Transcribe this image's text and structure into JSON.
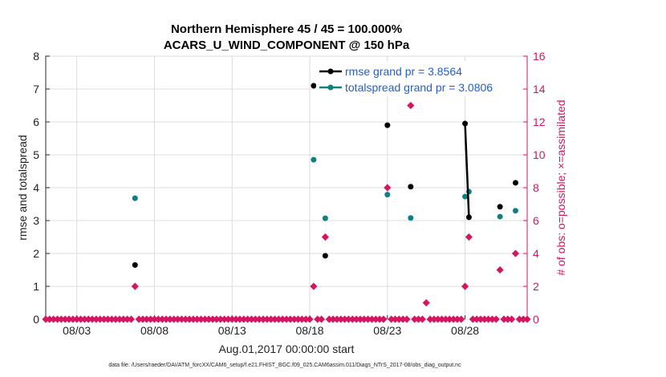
{
  "chart_data": {
    "type": "scatter",
    "title_line1": "Northern Hemisphere 45 / 45 = 100.000%",
    "title_line2": "ACARS_U_WIND_COMPONENT @ 150 hPa",
    "ylabel_left": "rmse and totalspread",
    "ylabel_right": "# of obs: o=possible; ×=assimilated",
    "xlabel": "Aug.01,2017 00:00:00 start",
    "footer": "data file: /Users/raeder/DAI/ATM_forcXX/CAM6_setup/f.e21.FHIST_BGC.f09_025.CAM6assim.011/Diags_NTrS_2017-08/obs_diag_output.nc",
    "xlim": [
      1,
      32
    ],
    "ylim_left": [
      0,
      8
    ],
    "ylim_right": [
      0,
      16
    ],
    "x_ticks": [
      3,
      8,
      13,
      18,
      23,
      28
    ],
    "x_tick_labels": [
      "08/03",
      "08/08",
      "08/13",
      "08/18",
      "08/23",
      "08/28"
    ],
    "y_left_ticks": [
      "0",
      "1",
      "2",
      "3",
      "4",
      "5",
      "6",
      "7",
      "8"
    ],
    "y_right_ticks": [
      "0",
      "2",
      "4",
      "6",
      "8",
      "10",
      "12",
      "14",
      "16"
    ],
    "legend": [
      {
        "label": "rmse grand pr = 3.8564",
        "color": "#000000"
      },
      {
        "label": "totalspread grand pr = 3.0806",
        "color": "#0e8080"
      }
    ],
    "colors": {
      "rmse": "#000000",
      "spread": "#0e8080",
      "obs": "#d6145f",
      "axis_right": "#d6145f",
      "legend_text": "#1f5fd6"
    },
    "series": [
      {
        "name": "rmse",
        "points": [
          [
            6.75,
            1.65
          ],
          [
            18.25,
            7.1
          ],
          [
            19.0,
            1.93
          ],
          [
            23.0,
            5.9
          ],
          [
            24.5,
            4.03
          ],
          [
            28.0,
            5.95
          ],
          [
            28.25,
            3.1
          ],
          [
            30.25,
            3.42
          ],
          [
            31.25,
            4.15
          ]
        ],
        "line_segments": [
          [
            5,
            6
          ]
        ]
      },
      {
        "name": "totalspread",
        "points": [
          [
            6.75,
            3.68
          ],
          [
            18.25,
            4.85
          ],
          [
            19.0,
            3.07
          ],
          [
            23.0,
            3.79
          ],
          [
            24.5,
            3.08
          ],
          [
            28.0,
            3.73
          ],
          [
            28.25,
            3.88
          ],
          [
            30.25,
            3.12
          ],
          [
            31.25,
            3.3
          ]
        ]
      },
      {
        "name": "obs_possible",
        "x_start": 1.0,
        "x_step": 0.25,
        "count": 125,
        "nonzero": [
          [
            6.75,
            2
          ],
          [
            18.25,
            2
          ],
          [
            19.0,
            5
          ],
          [
            23.0,
            8
          ],
          [
            24.5,
            13
          ],
          [
            25.5,
            1
          ],
          [
            28.0,
            2
          ],
          [
            28.25,
            5
          ],
          [
            30.25,
            3
          ],
          [
            31.25,
            4
          ]
        ]
      }
    ]
  }
}
